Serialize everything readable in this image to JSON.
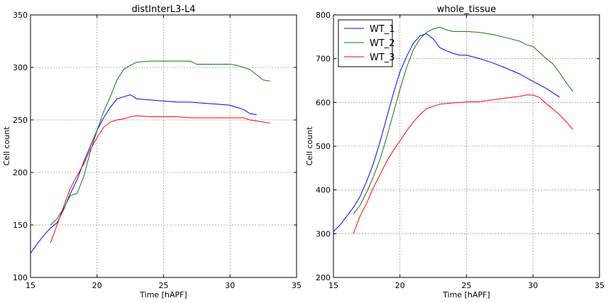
{
  "chart_data": [
    {
      "type": "line",
      "title": "distInterL3-L4",
      "xlabel": "Time [hAPF]",
      "ylabel": "Cell count",
      "xlim": [
        15,
        35
      ],
      "ylim": [
        100,
        350
      ],
      "xticks": [
        15,
        20,
        25,
        30,
        35
      ],
      "yticks": [
        100,
        150,
        200,
        250,
        300,
        350
      ],
      "grid": true,
      "legend": null,
      "series": [
        {
          "color": "#0000ff",
          "x": [
            15,
            15.5,
            16,
            16.5,
            17,
            17.5,
            18,
            18.5,
            19,
            19.5,
            20,
            20.5,
            21,
            21.5,
            22,
            22.5,
            23,
            24,
            25,
            26,
            27,
            28,
            29,
            30,
            30.5,
            31,
            31.5,
            32
          ],
          "y": [
            123,
            132,
            140,
            147,
            152,
            165,
            180,
            193,
            210,
            225,
            240,
            252,
            262,
            270,
            272,
            274,
            270,
            269,
            268,
            267,
            267,
            266,
            265,
            264,
            262,
            260,
            256,
            255
          ]
        },
        {
          "color": "#008000",
          "x": [
            16.5,
            17,
            17.5,
            18,
            18.5,
            19,
            19.5,
            20,
            20.5,
            21,
            21.5,
            22,
            22.5,
            23,
            24,
            25,
            26,
            27,
            27.5,
            28,
            29,
            30,
            30.5,
            31,
            31.5,
            32,
            32.5,
            33
          ],
          "y": [
            150,
            156,
            166,
            178,
            180,
            196,
            220,
            240,
            258,
            272,
            288,
            298,
            302,
            305,
            306,
            306,
            306,
            306,
            303,
            303,
            303,
            303,
            302,
            300,
            298,
            293,
            288,
            287
          ]
        },
        {
          "color": "#ff0000",
          "x": [
            16.5,
            17,
            17.5,
            18,
            18.5,
            19,
            19.5,
            20,
            20.5,
            21,
            21.5,
            22,
            22.5,
            23,
            24,
            25,
            26,
            27,
            28,
            29,
            30,
            31,
            31.5,
            32,
            32.5,
            33
          ],
          "y": [
            133,
            150,
            168,
            185,
            197,
            208,
            222,
            233,
            243,
            248,
            250,
            251,
            253,
            254,
            253,
            253,
            253,
            252,
            252,
            252,
            252,
            252,
            250,
            249,
            248,
            247
          ]
        }
      ]
    },
    {
      "type": "line",
      "title": "whole_tissue",
      "xlabel": "Time [hAPF]",
      "ylabel": "",
      "xlim": [
        15,
        35
      ],
      "ylim": [
        200,
        800
      ],
      "xticks": [
        15,
        20,
        25,
        30,
        35
      ],
      "yticks": [
        200,
        300,
        400,
        500,
        600,
        700,
        800
      ],
      "grid": true,
      "legend": "top-left",
      "series": [
        {
          "name": "WT_1",
          "color": "#0000ff",
          "x": [
            15,
            15.5,
            16,
            16.5,
            17,
            17.5,
            18,
            18.5,
            19,
            19.5,
            20,
            20.5,
            21,
            21.5,
            22,
            22.5,
            23,
            23.5,
            24,
            24.5,
            25,
            26,
            27,
            28,
            29,
            30,
            31,
            32
          ],
          "y": [
            305,
            320,
            340,
            360,
            385,
            420,
            460,
            510,
            565,
            620,
            670,
            705,
            735,
            752,
            757,
            745,
            725,
            718,
            712,
            708,
            708,
            700,
            690,
            678,
            665,
            648,
            632,
            612
          ]
        },
        {
          "name": "WT_2",
          "color": "#008000",
          "x": [
            16.5,
            17,
            17.5,
            18,
            18.5,
            19,
            19.5,
            20,
            20.5,
            21,
            21.5,
            22,
            22.5,
            23,
            23.5,
            24,
            25,
            26,
            27,
            28,
            29,
            29.5,
            30,
            31,
            31.5,
            32,
            32.5,
            33
          ],
          "y": [
            345,
            365,
            395,
            430,
            470,
            520,
            575,
            630,
            680,
            720,
            745,
            760,
            768,
            772,
            766,
            762,
            762,
            760,
            755,
            748,
            740,
            732,
            728,
            700,
            688,
            668,
            645,
            625
          ]
        },
        {
          "name": "WT_3",
          "color": "#ff0000",
          "x": [
            16.5,
            17,
            17.5,
            18,
            18.5,
            19,
            19.5,
            20,
            20.5,
            21,
            21.5,
            22,
            23,
            24,
            25,
            26,
            27,
            28,
            29,
            29.5,
            30,
            30.5,
            31,
            31.5,
            32,
            32.5,
            33
          ],
          "y": [
            300,
            340,
            370,
            405,
            435,
            465,
            490,
            512,
            535,
            555,
            572,
            586,
            596,
            599,
            601,
            602,
            606,
            610,
            614,
            617,
            617,
            611,
            597,
            585,
            572,
            556,
            538
          ]
        }
      ]
    }
  ]
}
